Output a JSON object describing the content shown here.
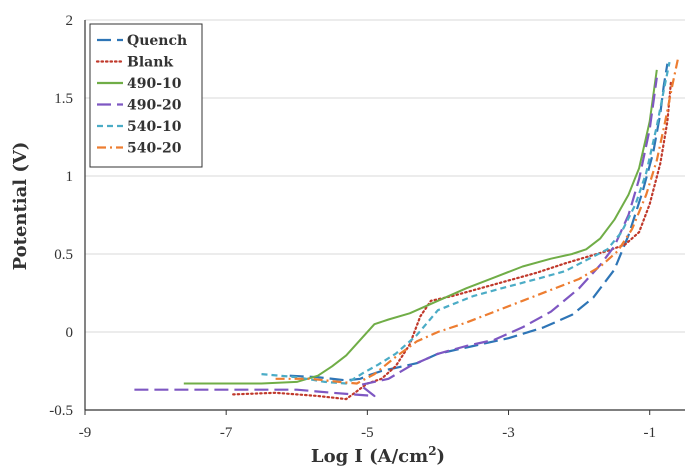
{
  "chart_data": {
    "type": "line",
    "title": "",
    "xlabel": "Log I (A/cm",
    "xlabel_sup": "2",
    "xlabel_close": ")",
    "ylabel": "Potential (V)",
    "xlim": [
      -9,
      -0.5
    ],
    "ylim": [
      -0.5,
      2
    ],
    "xticks": [
      -9,
      -7,
      -5,
      -3,
      -1
    ],
    "xtick_labels": [
      "-9",
      "-7",
      "-5",
      "-3",
      "-1"
    ],
    "yticks": [
      -0.5,
      0,
      0.5,
      1,
      1.5,
      2
    ],
    "ytick_labels": [
      "-0.5",
      "0",
      "0.5",
      "1",
      "1.5",
      "2"
    ],
    "grid": "horizontal",
    "legend_position": "top-left",
    "series": [
      {
        "name": "Quench",
        "color": "#2e75b6",
        "dash": "long-dash",
        "x": [
          -6.1,
          -5.7,
          -5.3,
          -5.1,
          -5.0,
          -4.8,
          -4.6,
          -4.3,
          -4.0,
          -3.5,
          -3.0,
          -2.5,
          -2.1,
          -1.8,
          -1.5,
          -1.3,
          -1.1,
          -0.95,
          -0.85,
          -0.8,
          -0.75
        ],
        "y": [
          -0.28,
          -0.29,
          -0.31,
          -0.3,
          -0.28,
          -0.25,
          -0.23,
          -0.2,
          -0.14,
          -0.09,
          -0.04,
          0.03,
          0.11,
          0.22,
          0.4,
          0.62,
          0.9,
          1.15,
          1.4,
          1.58,
          1.72
        ]
      },
      {
        "name": "Blank",
        "color": "#c0392b",
        "dash": "dotted",
        "x": [
          -6.9,
          -6.3,
          -5.7,
          -5.3,
          -5.0,
          -4.8,
          -4.6,
          -4.4,
          -4.25,
          -4.1,
          -3.8,
          -3.4,
          -3.0,
          -2.6,
          -2.2,
          -1.9,
          -1.6,
          -1.35,
          -1.15,
          -1.0,
          -0.85,
          -0.75,
          -0.7
        ],
        "y": [
          -0.4,
          -0.39,
          -0.41,
          -0.43,
          -0.33,
          -0.3,
          -0.22,
          -0.08,
          0.1,
          0.2,
          0.23,
          0.28,
          0.33,
          0.38,
          0.44,
          0.48,
          0.52,
          0.56,
          0.64,
          0.82,
          1.08,
          1.35,
          1.6
        ]
      },
      {
        "name": "490-10",
        "color": "#70ad47",
        "dash": "solid",
        "x": [
          -7.6,
          -7.0,
          -6.5,
          -6.0,
          -5.7,
          -5.5,
          -5.3,
          -5.1,
          -4.9,
          -4.7,
          -4.4,
          -4.0,
          -3.6,
          -3.2,
          -2.8,
          -2.4,
          -2.1,
          -1.9,
          -1.7,
          -1.5,
          -1.3,
          -1.15,
          -1.0,
          -0.9
        ],
        "y": [
          -0.33,
          -0.33,
          -0.33,
          -0.32,
          -0.28,
          -0.22,
          -0.15,
          -0.05,
          0.05,
          0.08,
          0.12,
          0.2,
          0.28,
          0.35,
          0.42,
          0.47,
          0.5,
          0.53,
          0.6,
          0.72,
          0.88,
          1.05,
          1.35,
          1.68
        ]
      },
      {
        "name": "490-20",
        "color": "#7e57c2",
        "dash": "long-dash",
        "x": [
          -8.3,
          -7.5,
          -6.8,
          -6.0,
          -5.5,
          -5.2,
          -4.9,
          -5.1,
          -4.7,
          -4.4,
          -4.0,
          -3.6,
          -3.2,
          -2.8,
          -2.4,
          -2.0,
          -1.7,
          -1.5,
          -1.3,
          -1.15,
          -1.0,
          -0.9
        ],
        "y": [
          -0.37,
          -0.37,
          -0.37,
          -0.37,
          -0.39,
          -0.4,
          -0.41,
          -0.34,
          -0.3,
          -0.22,
          -0.14,
          -0.09,
          -0.05,
          0.03,
          0.13,
          0.28,
          0.43,
          0.55,
          0.75,
          0.98,
          1.3,
          1.63
        ]
      },
      {
        "name": "540-10",
        "color": "#4bacc6",
        "dash": "short-dash",
        "x": [
          -6.5,
          -6.0,
          -5.6,
          -5.3,
          -5.05,
          -4.85,
          -4.6,
          -4.3,
          -4.0,
          -3.5,
          -3.1,
          -2.6,
          -2.2,
          -1.9,
          -1.6,
          -1.4,
          -1.2,
          -1.05,
          -0.9,
          -0.8,
          -0.72
        ],
        "y": [
          -0.27,
          -0.29,
          -0.32,
          -0.33,
          -0.26,
          -0.21,
          -0.14,
          -0.02,
          0.14,
          0.23,
          0.28,
          0.34,
          0.39,
          0.46,
          0.53,
          0.64,
          0.82,
          1.02,
          1.32,
          1.55,
          1.73
        ]
      },
      {
        "name": "540-20",
        "color": "#ed7d31",
        "dash": "dash-dot",
        "x": [
          -6.3,
          -5.8,
          -5.4,
          -5.15,
          -4.9,
          -4.6,
          -4.3,
          -4.0,
          -3.6,
          -3.2,
          -2.8,
          -2.4,
          -2.0,
          -1.7,
          -1.45,
          -1.25,
          -1.05,
          -0.9,
          -0.78,
          -0.68,
          -0.6
        ],
        "y": [
          -0.3,
          -0.3,
          -0.32,
          -0.33,
          -0.27,
          -0.16,
          -0.06,
          0.0,
          0.06,
          0.13,
          0.2,
          0.27,
          0.34,
          0.42,
          0.52,
          0.66,
          0.88,
          1.1,
          1.35,
          1.58,
          1.75
        ]
      }
    ]
  }
}
